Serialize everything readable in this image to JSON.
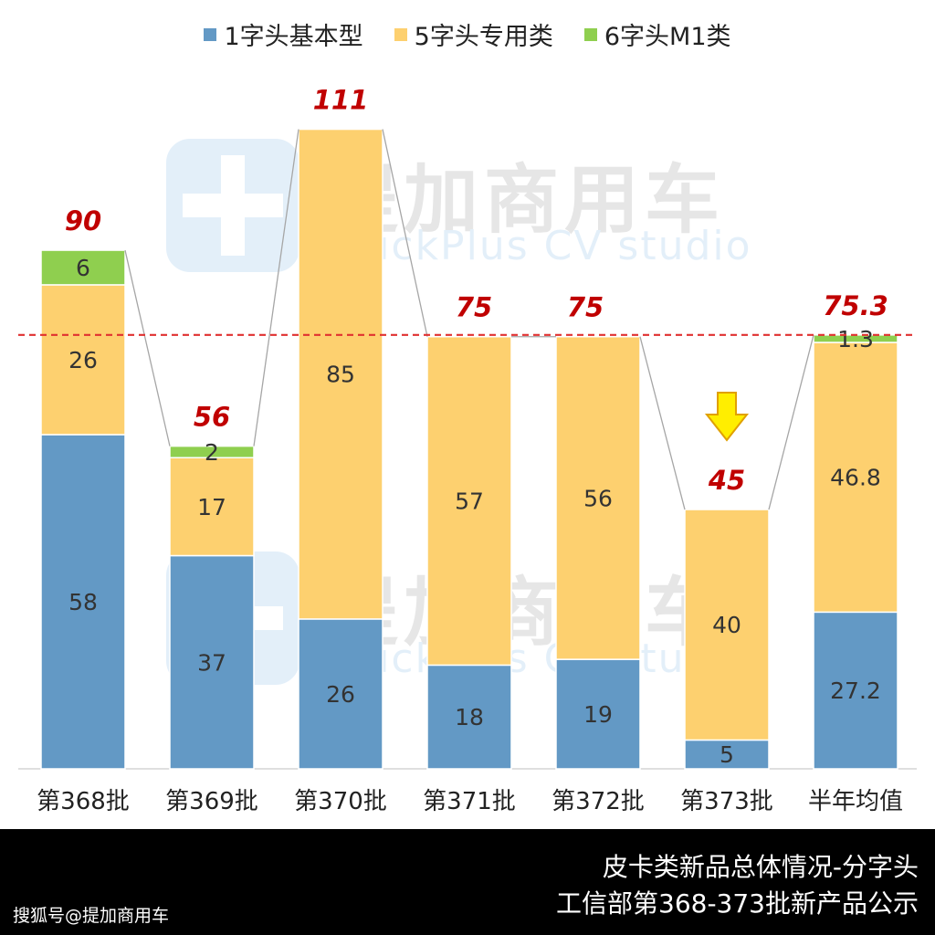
{
  "chart_data": {
    "type": "bar",
    "stacked": true,
    "categories": [
      "第368批",
      "第369批",
      "第370批",
      "第371批",
      "第372批",
      "第373批",
      "半年均值"
    ],
    "series": [
      {
        "name": "1字头基本型",
        "color": "#6399c5",
        "values": [
          58,
          37,
          26,
          18,
          19,
          5,
          27.2
        ]
      },
      {
        "name": "5字头专用类",
        "color": "#fdd06f",
        "values": [
          26,
          17,
          85,
          57,
          56,
          40,
          46.8
        ]
      },
      {
        "name": "6字头M1类",
        "color": "#8fcf4f",
        "values": [
          6,
          2,
          0,
          0,
          0,
          0,
          1.3
        ]
      }
    ],
    "segment_labels": [
      [
        "58",
        "37",
        "26",
        "18",
        "19",
        "5",
        "27.2"
      ],
      [
        "26",
        "17",
        "85",
        "57",
        "56",
        "40",
        "46.8"
      ],
      [
        "6",
        "2",
        "",
        "",
        "",
        "",
        "1.3"
      ]
    ],
    "totals": [
      90,
      56,
      111,
      75,
      75,
      45,
      75.3
    ],
    "total_labels": [
      "90",
      "56",
      "111",
      "75",
      "75",
      "45",
      "75.3"
    ],
    "average_line": 75.3,
    "ylim": [
      0,
      116
    ],
    "legend_position": "top-center",
    "grid": false,
    "total_label_color": "#c00000",
    "average_line_color": "#e03030",
    "highlight_arrow_category": "第373批"
  },
  "watermark": {
    "brand_cn": "提加商用车",
    "brand_en": "TruckPlus CV studio"
  },
  "footer": {
    "title": "皮卡类新品总体情况-分字头",
    "subtitle": "工信部第368-373批新产品公示",
    "source": "搜狐号@提加商用车"
  }
}
